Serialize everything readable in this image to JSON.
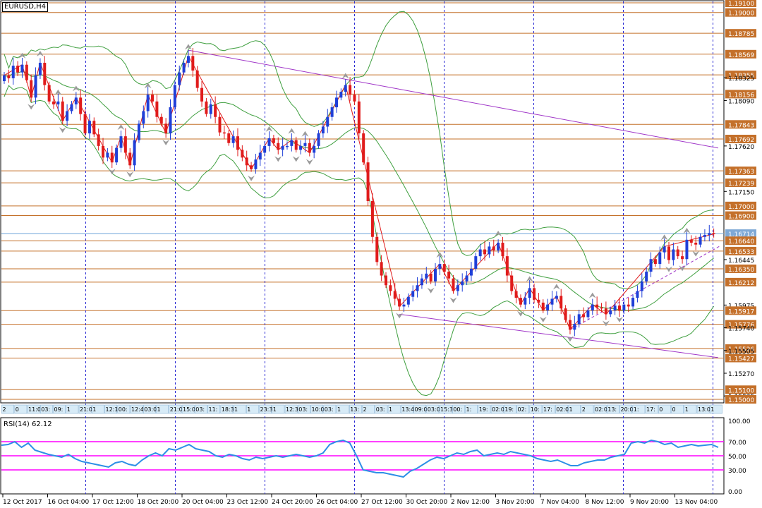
{
  "symbol_label": "EURUSD,H4",
  "rsi_label": "RSI(14) 62.12",
  "colors": {
    "up_candle": "#1f3fd8",
    "down_candle": "#e01b1b",
    "hline": "#c4702a",
    "hline_label_bg": "#c4702a",
    "current_price_line": "#6fa4d8",
    "current_price_bg": "#7fa9d6",
    "bollinger": "#3f9f3f",
    "trendline": "#a036c8",
    "zigzag": "#e01b1b",
    "period_sep": "#2a2ad4",
    "rsi_line": "#2d8fe6",
    "rsi_level": "#ff00ff"
  },
  "chart_data": {
    "type": "candlestick",
    "title": "EURUSD,H4",
    "price_axis": {
      "range": [
        1.15,
        1.191
      ],
      "ticks": [
        "1.19100",
        "1.19000",
        "1.18785",
        "1.18569",
        "1.18355",
        "1.18325",
        "1.18156",
        "1.18090",
        "1.17843",
        "1.17692",
        "1.17620",
        "1.17363",
        "1.17239",
        "1.17150",
        "1.17000",
        "1.16900",
        "1.16714",
        "1.16640",
        "1.16533",
        "1.16445",
        "1.16350",
        "1.16212",
        "1.15975",
        "1.15917",
        "1.15776",
        "1.15740",
        "1.15526",
        "1.15505",
        "1.15427",
        "1.15270",
        "1.15100",
        "1.15035",
        "1.15000"
      ]
    },
    "horizontal_levels": [
      1.191,
      1.19,
      1.18785,
      1.18569,
      1.18355,
      1.18156,
      1.17843,
      1.17692,
      1.17363,
      1.17239,
      1.17,
      1.169,
      1.1664,
      1.16533,
      1.1635,
      1.16212,
      1.15917,
      1.15776,
      1.15526,
      1.15427,
      1.151,
      1.15
    ],
    "current_price": 1.16714,
    "time_axis_labels": [
      "12 Oct 2017",
      "16 Oct 04:00",
      "17 Oct 12:00",
      "18 Oct 20:00",
      "20 Oct 04:00",
      "23 Oct 12:00",
      "24 Oct 20:00",
      "26 Oct 04:00",
      "27 Oct 12:00",
      "30 Oct 20:00",
      "2 Nov 12:00",
      "3 Nov 20:00",
      "7 Nov 04:00",
      "8 Nov 12:00",
      "9 Nov 20:00",
      "13 Nov 04:00"
    ],
    "time_tag_strip": [
      "2",
      "0",
      "11:05",
      "03:",
      "09:",
      "1",
      "21:00",
      "1",
      "12:10",
      "00:",
      "12:44",
      "03:00",
      "1",
      "21:00",
      "15:00",
      "03:",
      "11:",
      "18:30",
      "1",
      "1",
      "23:30",
      "1",
      "12:35",
      "03:",
      "10:00",
      "03:",
      "1",
      "13:",
      "2",
      "03:",
      "1",
      "13:45",
      "09:00",
      "03:00",
      "15:30",
      "00:",
      "1:",
      "19:",
      "02:00",
      "19:",
      "02:",
      "10:",
      "17:",
      "02:00",
      "1",
      "2",
      "02:01",
      "13:",
      "20:00",
      "1:",
      "17:",
      "0",
      "0",
      "1",
      "13:02",
      "1"
    ],
    "candle_closes": [
      1.1835,
      1.1832,
      1.1845,
      1.1838,
      1.1846,
      1.183,
      1.1812,
      1.1835,
      1.1848,
      1.1825,
      1.1808,
      1.1805,
      1.1808,
      1.1788,
      1.1798,
      1.1805,
      1.1812,
      1.1795,
      1.1775,
      1.1788,
      1.1774,
      1.1762,
      1.175,
      1.1755,
      1.1745,
      1.176,
      1.1772,
      1.1755,
      1.1742,
      1.1768,
      1.1785,
      1.1798,
      1.1815,
      1.1808,
      1.1792,
      1.1785,
      1.1775,
      1.1802,
      1.1825,
      1.1838,
      1.1848,
      1.1855,
      1.184,
      1.1822,
      1.1808,
      1.1795,
      1.1805,
      1.1792,
      1.1776,
      1.1775,
      1.1765,
      1.1772,
      1.1758,
      1.175,
      1.1742,
      1.1738,
      1.1748,
      1.1755,
      1.1762,
      1.177,
      1.1765,
      1.1758,
      1.1762,
      1.1762,
      1.1768,
      1.1758,
      1.1762,
      1.1765,
      1.1755,
      1.1762,
      1.1775,
      1.1782,
      1.1792,
      1.1802,
      1.1812,
      1.1818,
      1.1825,
      1.1815,
      1.1808,
      1.1775,
      1.1745,
      1.1705,
      1.1668,
      1.1642,
      1.1628,
      1.1618,
      1.1612,
      1.1604,
      1.1596,
      1.1598,
      1.1606,
      1.1612,
      1.1618,
      1.1625,
      1.163,
      1.1622,
      1.1635,
      1.164,
      1.1632,
      1.1625,
      1.1612,
      1.1618,
      1.1622,
      1.1628,
      1.1635,
      1.1648,
      1.1655,
      1.165,
      1.1658,
      1.1654,
      1.1662,
      1.1648,
      1.1628,
      1.1612,
      1.1605,
      1.1598,
      1.1605,
      1.1615,
      1.1603,
      1.16,
      1.1592,
      1.1598,
      1.1604,
      1.1607,
      1.1594,
      1.1582,
      1.1572,
      1.1578,
      1.1588,
      1.1585,
      1.1592,
      1.1598,
      1.1595,
      1.1594,
      1.1588,
      1.1592,
      1.1597,
      1.1592,
      1.1598,
      1.1596,
      1.1605,
      1.1612,
      1.1622,
      1.1632,
      1.1645,
      1.164,
      1.1652,
      1.1658,
      1.1644,
      1.1655,
      1.1648,
      1.1645,
      1.1665,
      1.1662,
      1.166,
      1.1668,
      1.167,
      1.1672,
      1.1671
    ],
    "rsi": {
      "period": 14,
      "last_value": 62.12,
      "range": [
        0,
        100
      ],
      "ticks": [
        100,
        70,
        50,
        30,
        0
      ],
      "levels": [
        70,
        50,
        30
      ],
      "values": [
        65,
        66,
        70,
        62,
        68,
        58,
        55,
        52,
        50,
        48,
        52,
        46,
        42,
        40,
        38,
        36,
        34,
        40,
        42,
        38,
        36,
        44,
        50,
        54,
        50,
        60,
        58,
        62,
        66,
        60,
        58,
        56,
        50,
        48,
        52,
        50,
        46,
        44,
        48,
        46,
        48,
        50,
        48,
        50,
        52,
        50,
        48,
        50,
        54,
        66,
        70,
        72,
        68,
        50,
        30,
        28,
        26,
        26,
        24,
        22,
        20,
        28,
        32,
        38,
        44,
        48,
        46,
        50,
        54,
        52,
        56,
        58,
        50,
        52,
        54,
        52,
        56,
        54,
        52,
        50,
        46,
        44,
        42,
        44,
        40,
        36,
        36,
        40,
        42,
        44,
        44,
        48,
        50,
        52,
        68,
        70,
        68,
        72,
        70,
        66,
        68,
        62,
        64,
        66,
        64,
        65,
        66,
        62
      ]
    },
    "grid": false,
    "legend": "none"
  }
}
